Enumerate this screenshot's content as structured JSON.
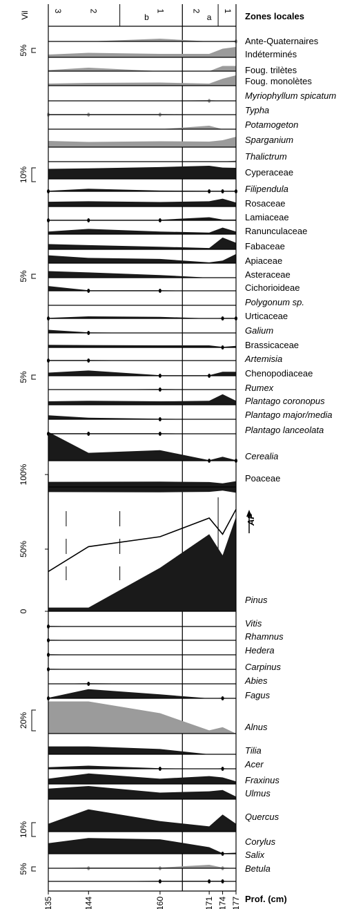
{
  "chart_data": {
    "type": "area",
    "title": "",
    "zone_header": "Zones locales",
    "zone_column_label": "Vil",
    "zones": [
      {
        "label": "3",
        "from": 135,
        "to": 139
      },
      {
        "label": "2",
        "from": 139,
        "to": 151
      },
      {
        "label": "b",
        "from": 151,
        "to": 165
      },
      {
        "label": "1",
        "from": 151,
        "to": 165
      },
      {
        "label": "2",
        "from": 165,
        "to": 173
      },
      {
        "label": "a",
        "from": 165,
        "to": 173
      },
      {
        "label": "1",
        "from": 173,
        "to": 177
      }
    ],
    "depth_axis": {
      "label": "Prof. (cm)",
      "ticks": [
        135,
        144,
        160,
        171,
        174,
        177
      ],
      "range": [
        135,
        177
      ]
    },
    "samples": [
      135,
      144,
      160,
      171,
      174,
      177
    ],
    "scale_labels": [
      {
        "text": "5%",
        "value": 5,
        "at_taxon": "Indéterminés"
      },
      {
        "text": "10%",
        "value": 10,
        "at_taxon": "Cyperaceae"
      },
      {
        "text": "5%",
        "value": 5,
        "at_taxon": "Asteraceae"
      },
      {
        "text": "5%",
        "value": 5,
        "at_taxon": "Chenopodiaceae"
      },
      {
        "text": "100%",
        "value": 100,
        "at_taxon": "Poaceae"
      },
      {
        "text": "50%",
        "value": 50,
        "at_taxon": "Pinus"
      },
      {
        "text": "0",
        "value": 0,
        "at_taxon": "Pinus"
      },
      {
        "text": "20%",
        "value": 20,
        "at_taxon": "Alnus"
      },
      {
        "text": "10%",
        "value": 10,
        "at_taxon": "Quercus"
      },
      {
        "text": "5%",
        "value": 5,
        "at_taxon": "Salix"
      }
    ],
    "ap_label": "AP",
    "ap_curve": [
      32,
      52,
      60,
      75,
      62,
      82
    ],
    "series": [
      {
        "name": "Ante-Quaternaires",
        "italic": false,
        "color": "#9b9b9b",
        "values": [
          0,
          0,
          0.8,
          0,
          0,
          0.2
        ]
      },
      {
        "name": "Indéterminés",
        "italic": false,
        "color": "#9b9b9b",
        "values": [
          0.8,
          1.3,
          1.0,
          1.0,
          2.5,
          3.0
        ]
      },
      {
        "name": "Foug. trilètes",
        "italic": false,
        "color": "#9b9b9b",
        "values": [
          0.3,
          1.0,
          0,
          0,
          1.5,
          1.5
        ]
      },
      {
        "name": "Foug. monolètes",
        "italic": false,
        "color": "#9b9b9b",
        "values": [
          0.6,
          0.8,
          0.9,
          0.6,
          2.0,
          3.0
        ]
      },
      {
        "name": "Myriophyllum spicatum",
        "italic": true,
        "color": "#9b9b9b",
        "values": [
          0,
          0,
          0,
          0.2,
          0,
          0
        ]
      },
      {
        "name": "Typha",
        "italic": true,
        "color": "#9b9b9b",
        "values": [
          0.2,
          0.2,
          0.2,
          0,
          0,
          0
        ]
      },
      {
        "name": "Potamogeton",
        "italic": true,
        "color": "#9b9b9b",
        "values": [
          0,
          0,
          0,
          1.0,
          0,
          0
        ]
      },
      {
        "name": "Sparganium",
        "italic": true,
        "color": "#9b9b9b",
        "values": [
          1.8,
          1.5,
          1.7,
          1.6,
          2.0,
          3.0
        ]
      },
      {
        "name": "Thalictrum",
        "italic": true,
        "color": "#9b9b9b",
        "values": [
          0,
          0,
          0,
          0,
          0,
          0.3
        ]
      },
      {
        "name": "Cyperaceae",
        "italic": false,
        "color": "#1a1a1a",
        "values": [
          3.8,
          4.0,
          4.5,
          5.0,
          4.3,
          4.2
        ]
      },
      {
        "name": "Filipendula",
        "italic": true,
        "color": "#1a1a1a",
        "values": [
          0.2,
          1.0,
          0.3,
          0.2,
          0.2,
          0.2
        ]
      },
      {
        "name": "Rosaceae",
        "italic": false,
        "color": "#1a1a1a",
        "values": [
          1.8,
          2.0,
          1.7,
          2.0,
          3.0,
          1.5
        ]
      },
      {
        "name": "Lamiaceae",
        "italic": false,
        "color": "#1a1a1a",
        "values": [
          0.2,
          0.2,
          0.2,
          1.2,
          0.3,
          0.3
        ]
      },
      {
        "name": "Ranunculaceae",
        "italic": false,
        "color": "#1a1a1a",
        "values": [
          1.0,
          2.0,
          1.0,
          0.6,
          2.5,
          1.0
        ]
      },
      {
        "name": "Fabaceae",
        "italic": false,
        "color": "#1a1a1a",
        "values": [
          2.0,
          1.6,
          1.0,
          0.5,
          4.5,
          2.5
        ]
      },
      {
        "name": "Apiaceae",
        "italic": false,
        "color": "#1a1a1a",
        "values": [
          3.0,
          2.0,
          1.6,
          0.3,
          1.0,
          3.5
        ]
      },
      {
        "name": "Asteraceae",
        "italic": false,
        "color": "#1a1a1a",
        "values": [
          2.5,
          2.0,
          1.0,
          0,
          0,
          0
        ]
      },
      {
        "name": "Cichorioideae",
        "italic": false,
        "color": "#1a1a1a",
        "values": [
          1.8,
          0.2,
          0.2,
          0,
          0,
          0
        ]
      },
      {
        "name": "Polygonum sp.",
        "italic": true,
        "color": "#1a1a1a",
        "values": [
          0,
          0,
          0,
          0,
          0,
          0
        ]
      },
      {
        "name": "Urticaceae",
        "italic": false,
        "color": "#1a1a1a",
        "values": [
          0.2,
          0.8,
          0.6,
          0,
          0.2,
          0.2
        ]
      },
      {
        "name": "Galium",
        "italic": true,
        "color": "#1a1a1a",
        "values": [
          1.2,
          0.2,
          0,
          0,
          0,
          0
        ]
      },
      {
        "name": "Brassicaceae",
        "italic": false,
        "color": "#1a1a1a",
        "values": [
          1.0,
          0.9,
          0.8,
          0.8,
          0.2,
          0.6
        ]
      },
      {
        "name": "Artemisia",
        "italic": true,
        "color": "#1a1a1a",
        "values": [
          0.2,
          0.2,
          0,
          0,
          0,
          0
        ]
      },
      {
        "name": "Chenopodiaceae",
        "italic": false,
        "color": "#1a1a1a",
        "values": [
          1.2,
          2.0,
          0.2,
          0.2,
          1.5,
          1.5
        ]
      },
      {
        "name": "Rumex",
        "italic": true,
        "color": "#1a1a1a",
        "values": [
          0,
          0,
          0.2,
          0,
          0,
          0
        ]
      },
      {
        "name": "Plantago coronopus",
        "italic": true,
        "color": "#1a1a1a",
        "values": [
          1.3,
          1.5,
          1.3,
          1.5,
          4.0,
          1.5
        ]
      },
      {
        "name": "Plantago major/media",
        "italic": true,
        "color": "#1a1a1a",
        "values": [
          1.5,
          0.6,
          0.2,
          0,
          0,
          0
        ]
      },
      {
        "name": "Plantago lanceolata",
        "italic": true,
        "color": "#1a1a1a",
        "values": [
          0.2,
          0.2,
          0.2,
          0,
          0,
          0
        ]
      },
      {
        "name": "Cerealia",
        "italic": true,
        "color": "#1a1a1a",
        "values": [
          11.0,
          3.0,
          4.0,
          0.2,
          1.5,
          0.2
        ]
      },
      {
        "name": "Poaceae",
        "italic": false,
        "color": "#1a1a1a",
        "values": [
          42,
          43,
          44,
          41,
          30,
          48
        ]
      },
      {
        "name": "Pinus",
        "italic": true,
        "color": "#1a1a1a",
        "values": [
          3,
          3,
          35,
          62,
          45,
          76
        ]
      },
      {
        "name": "Vitis",
        "italic": true,
        "color": "#1a1a1a",
        "values": [
          0.2,
          0,
          0,
          0,
          0,
          0
        ]
      },
      {
        "name": "Rhamnus",
        "italic": true,
        "color": "#1a1a1a",
        "values": [
          0.2,
          0,
          0,
          0,
          0,
          0
        ]
      },
      {
        "name": "Hedera",
        "italic": true,
        "color": "#1a1a1a",
        "values": [
          0.2,
          0,
          0,
          0,
          0,
          0
        ]
      },
      {
        "name": "Carpinus",
        "italic": true,
        "color": "#1a1a1a",
        "values": [
          0.2,
          0,
          0,
          0,
          0,
          0
        ]
      },
      {
        "name": "Abies",
        "italic": true,
        "color": "#1a1a1a",
        "values": [
          0,
          0.2,
          0,
          0,
          0,
          0
        ]
      },
      {
        "name": "Fagus",
        "italic": true,
        "color": "#1a1a1a",
        "values": [
          0.2,
          3.5,
          1.5,
          0,
          0.2,
          0
        ]
      },
      {
        "name": "Alnus",
        "italic": true,
        "color": "#9b9b9b",
        "values": [
          30,
          30,
          19,
          3,
          6,
          0
        ]
      },
      {
        "name": "Tilia",
        "italic": true,
        "color": "#1a1a1a",
        "values": [
          3.0,
          3.0,
          2.0,
          0,
          0,
          0
        ]
      },
      {
        "name": "Acer",
        "italic": true,
        "color": "#1a1a1a",
        "values": [
          0.6,
          1.2,
          0.2,
          0,
          0.2,
          0
        ]
      },
      {
        "name": "Fraxinus",
        "italic": true,
        "color": "#1a1a1a",
        "values": [
          2.0,
          4.0,
          2.0,
          3.0,
          2.5,
          1.0
        ]
      },
      {
        "name": "Ulmus",
        "italic": true,
        "color": "#1a1a1a",
        "values": [
          4.0,
          5.0,
          2.5,
          3.0,
          3.5,
          1.0
        ]
      },
      {
        "name": "Quercus",
        "italic": true,
        "color": "#1a1a1a",
        "values": [
          3.0,
          8.5,
          4.0,
          2.0,
          6.5,
          3.0
        ]
      },
      {
        "name": "Corylus",
        "italic": true,
        "color": "#1a1a1a",
        "values": [
          4.0,
          6.0,
          5.5,
          2.5,
          0.2,
          0.4
        ]
      },
      {
        "name": "Salix",
        "italic": true,
        "color": "#9b9b9b",
        "values": [
          0,
          0.2,
          0.2,
          1.0,
          0.2,
          0
        ]
      },
      {
        "name": "Betula",
        "italic": true,
        "color": "#1a1a1a",
        "values": [
          0,
          0,
          0.2,
          0.2,
          0.2,
          0
        ]
      }
    ]
  }
}
